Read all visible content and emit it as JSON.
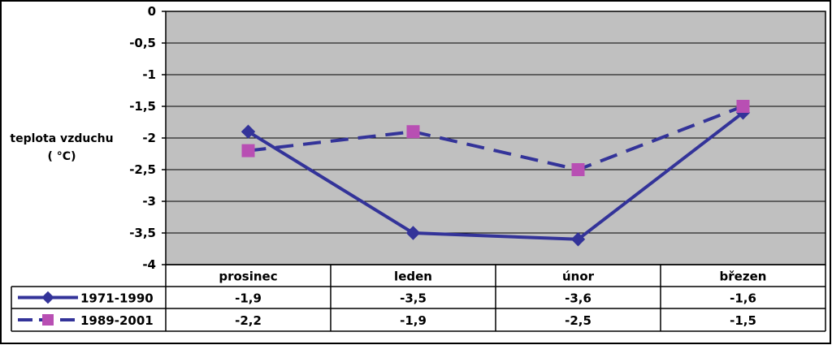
{
  "chart_data": {
    "type": "line",
    "categories": [
      "prosinec",
      "leden",
      "únor",
      "březen"
    ],
    "ylabel": [
      "teplota vzduchu",
      "( °C)"
    ],
    "ylim": [
      -4,
      0
    ],
    "yticks": [
      0,
      -0.5,
      -1,
      -1.5,
      -2,
      -2.5,
      -3,
      -3.5,
      -4
    ],
    "ytick_labels": [
      "0",
      "-0,5",
      "-1",
      "-1,5",
      "-2",
      "-2,5",
      "-3",
      "-3,5",
      "-4"
    ],
    "grid": true,
    "legend": "data-table",
    "plot_background": "#c0c0c0",
    "series": [
      {
        "name": "1971-1990",
        "values": [
          -1.9,
          -3.5,
          -3.6,
          -1.6
        ],
        "labels": [
          "-1,9",
          "-3,5",
          "-3,6",
          "-1,6"
        ],
        "color": "#333399",
        "marker": "diamond",
        "line": "solid"
      },
      {
        "name": "1989-2001",
        "values": [
          -2.2,
          -1.9,
          -2.5,
          -1.5
        ],
        "labels": [
          "-2,2",
          "-1,9",
          "-2,5",
          "-1,5"
        ],
        "color": "#333399",
        "marker_color": "#b84fb3",
        "marker": "square",
        "line": "dashed"
      }
    ]
  }
}
